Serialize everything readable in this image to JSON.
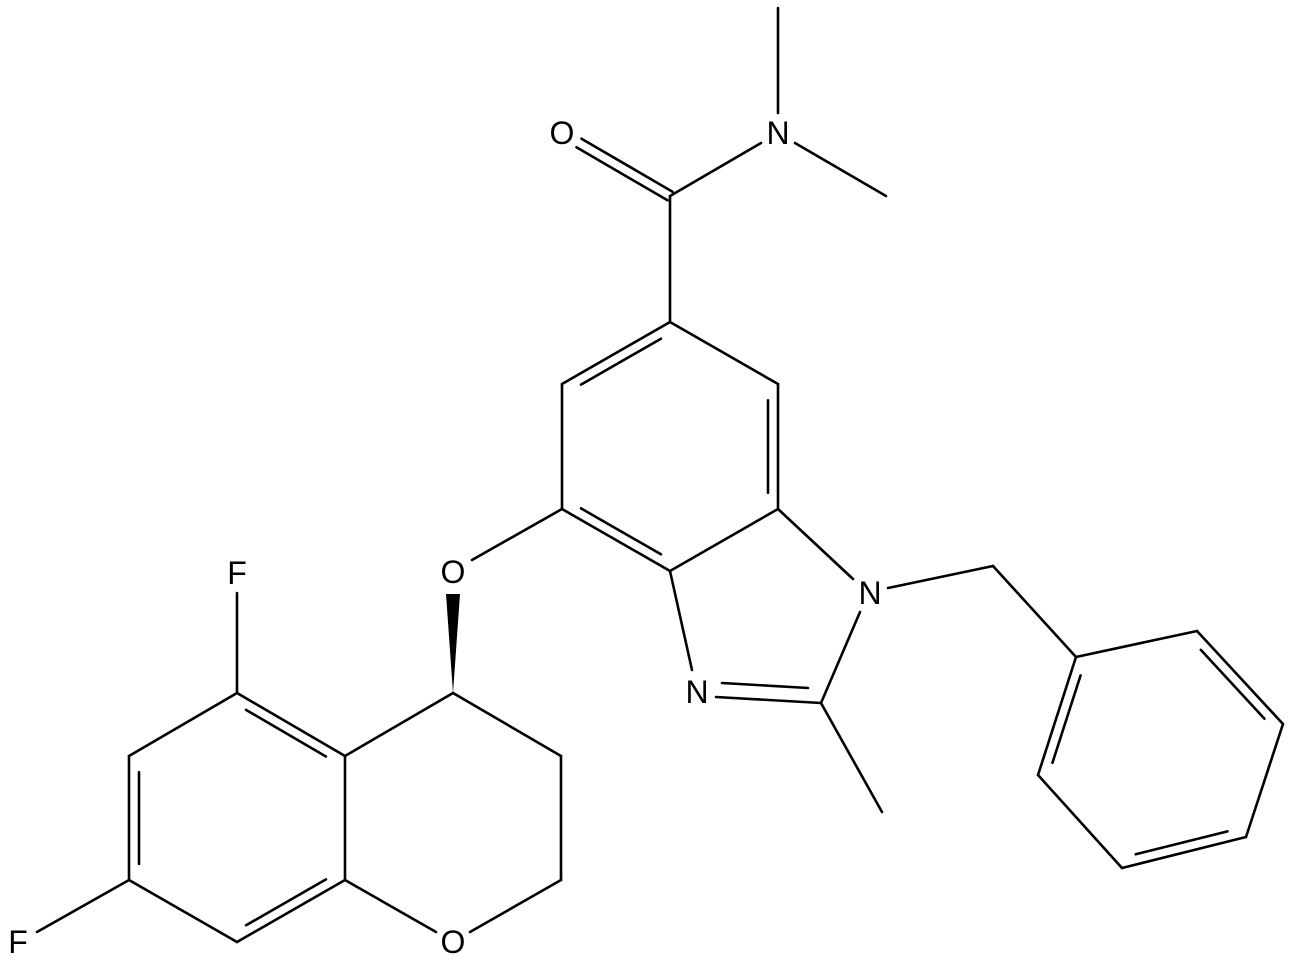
{
  "atoms": [
    "O",
    "N",
    "O",
    "N",
    "N",
    "F",
    "F",
    "O"
  ]
}
